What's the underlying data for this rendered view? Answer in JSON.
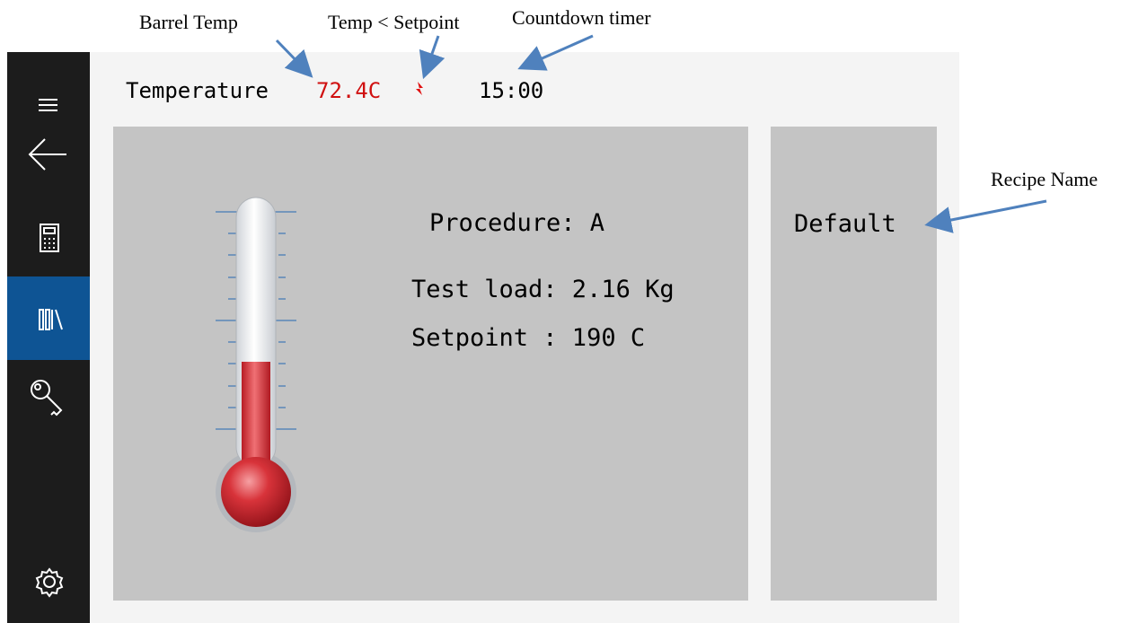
{
  "annotations": {
    "barrel_temp": "Barrel Temp",
    "temp_below_setpoint": "Temp < Setpoint",
    "countdown_timer": "Countdown timer",
    "recipe_name": "Recipe Name"
  },
  "header": {
    "label": "Temperature",
    "temperature": "72.4C",
    "timer": "15:00"
  },
  "details": {
    "procedure": "Procedure: A",
    "test_load": "Test load: 2.16 Kg",
    "setpoint": "Setpoint : 190 C"
  },
  "recipe": {
    "name": "Default"
  }
}
